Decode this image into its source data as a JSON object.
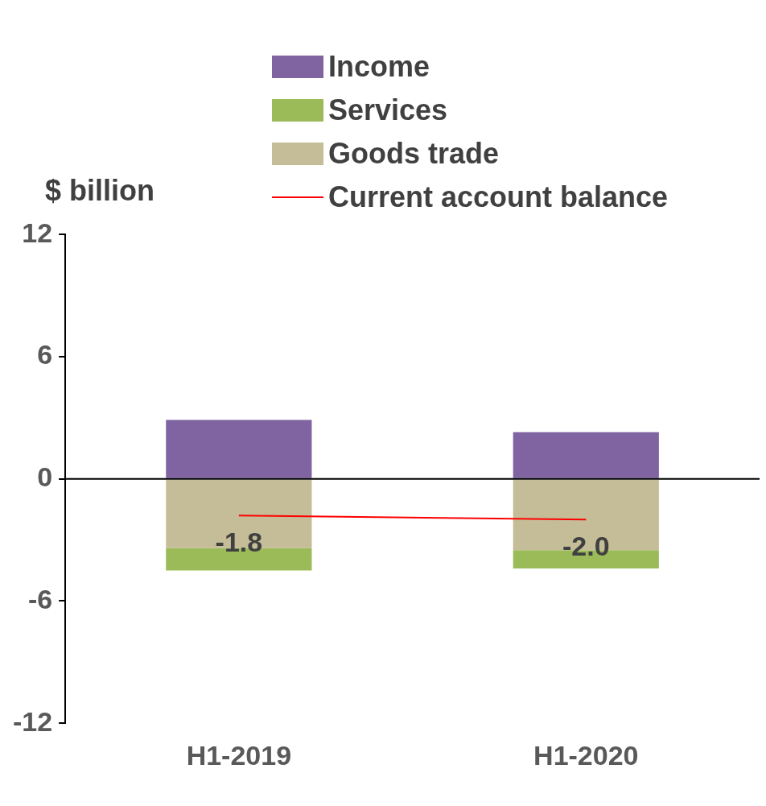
{
  "chart_data": {
    "type": "bar",
    "stacked": true,
    "ylabel": "$ billion",
    "categories": [
      "H1-2019",
      "H1-2020"
    ],
    "series": [
      {
        "name": "Goods trade",
        "color": "#c4bd97",
        "values": [
          -3.4,
          -3.5
        ]
      },
      {
        "name": "Services",
        "color": "#9bbb59",
        "values": [
          -1.1,
          -0.9
        ]
      },
      {
        "name": "Income",
        "color": "#8064a2",
        "values": [
          2.9,
          2.3
        ]
      },
      {
        "name": "Current account balance",
        "type": "line",
        "color": "#ff0000",
        "values": [
          -1.8,
          -2.0
        ],
        "value_labels": [
          "-1.8",
          "-2.0"
        ]
      }
    ],
    "ylim": [
      -12,
      12
    ],
    "yticks": [
      -12,
      -6,
      0,
      6,
      12
    ],
    "legend": "top",
    "marker": "none"
  }
}
